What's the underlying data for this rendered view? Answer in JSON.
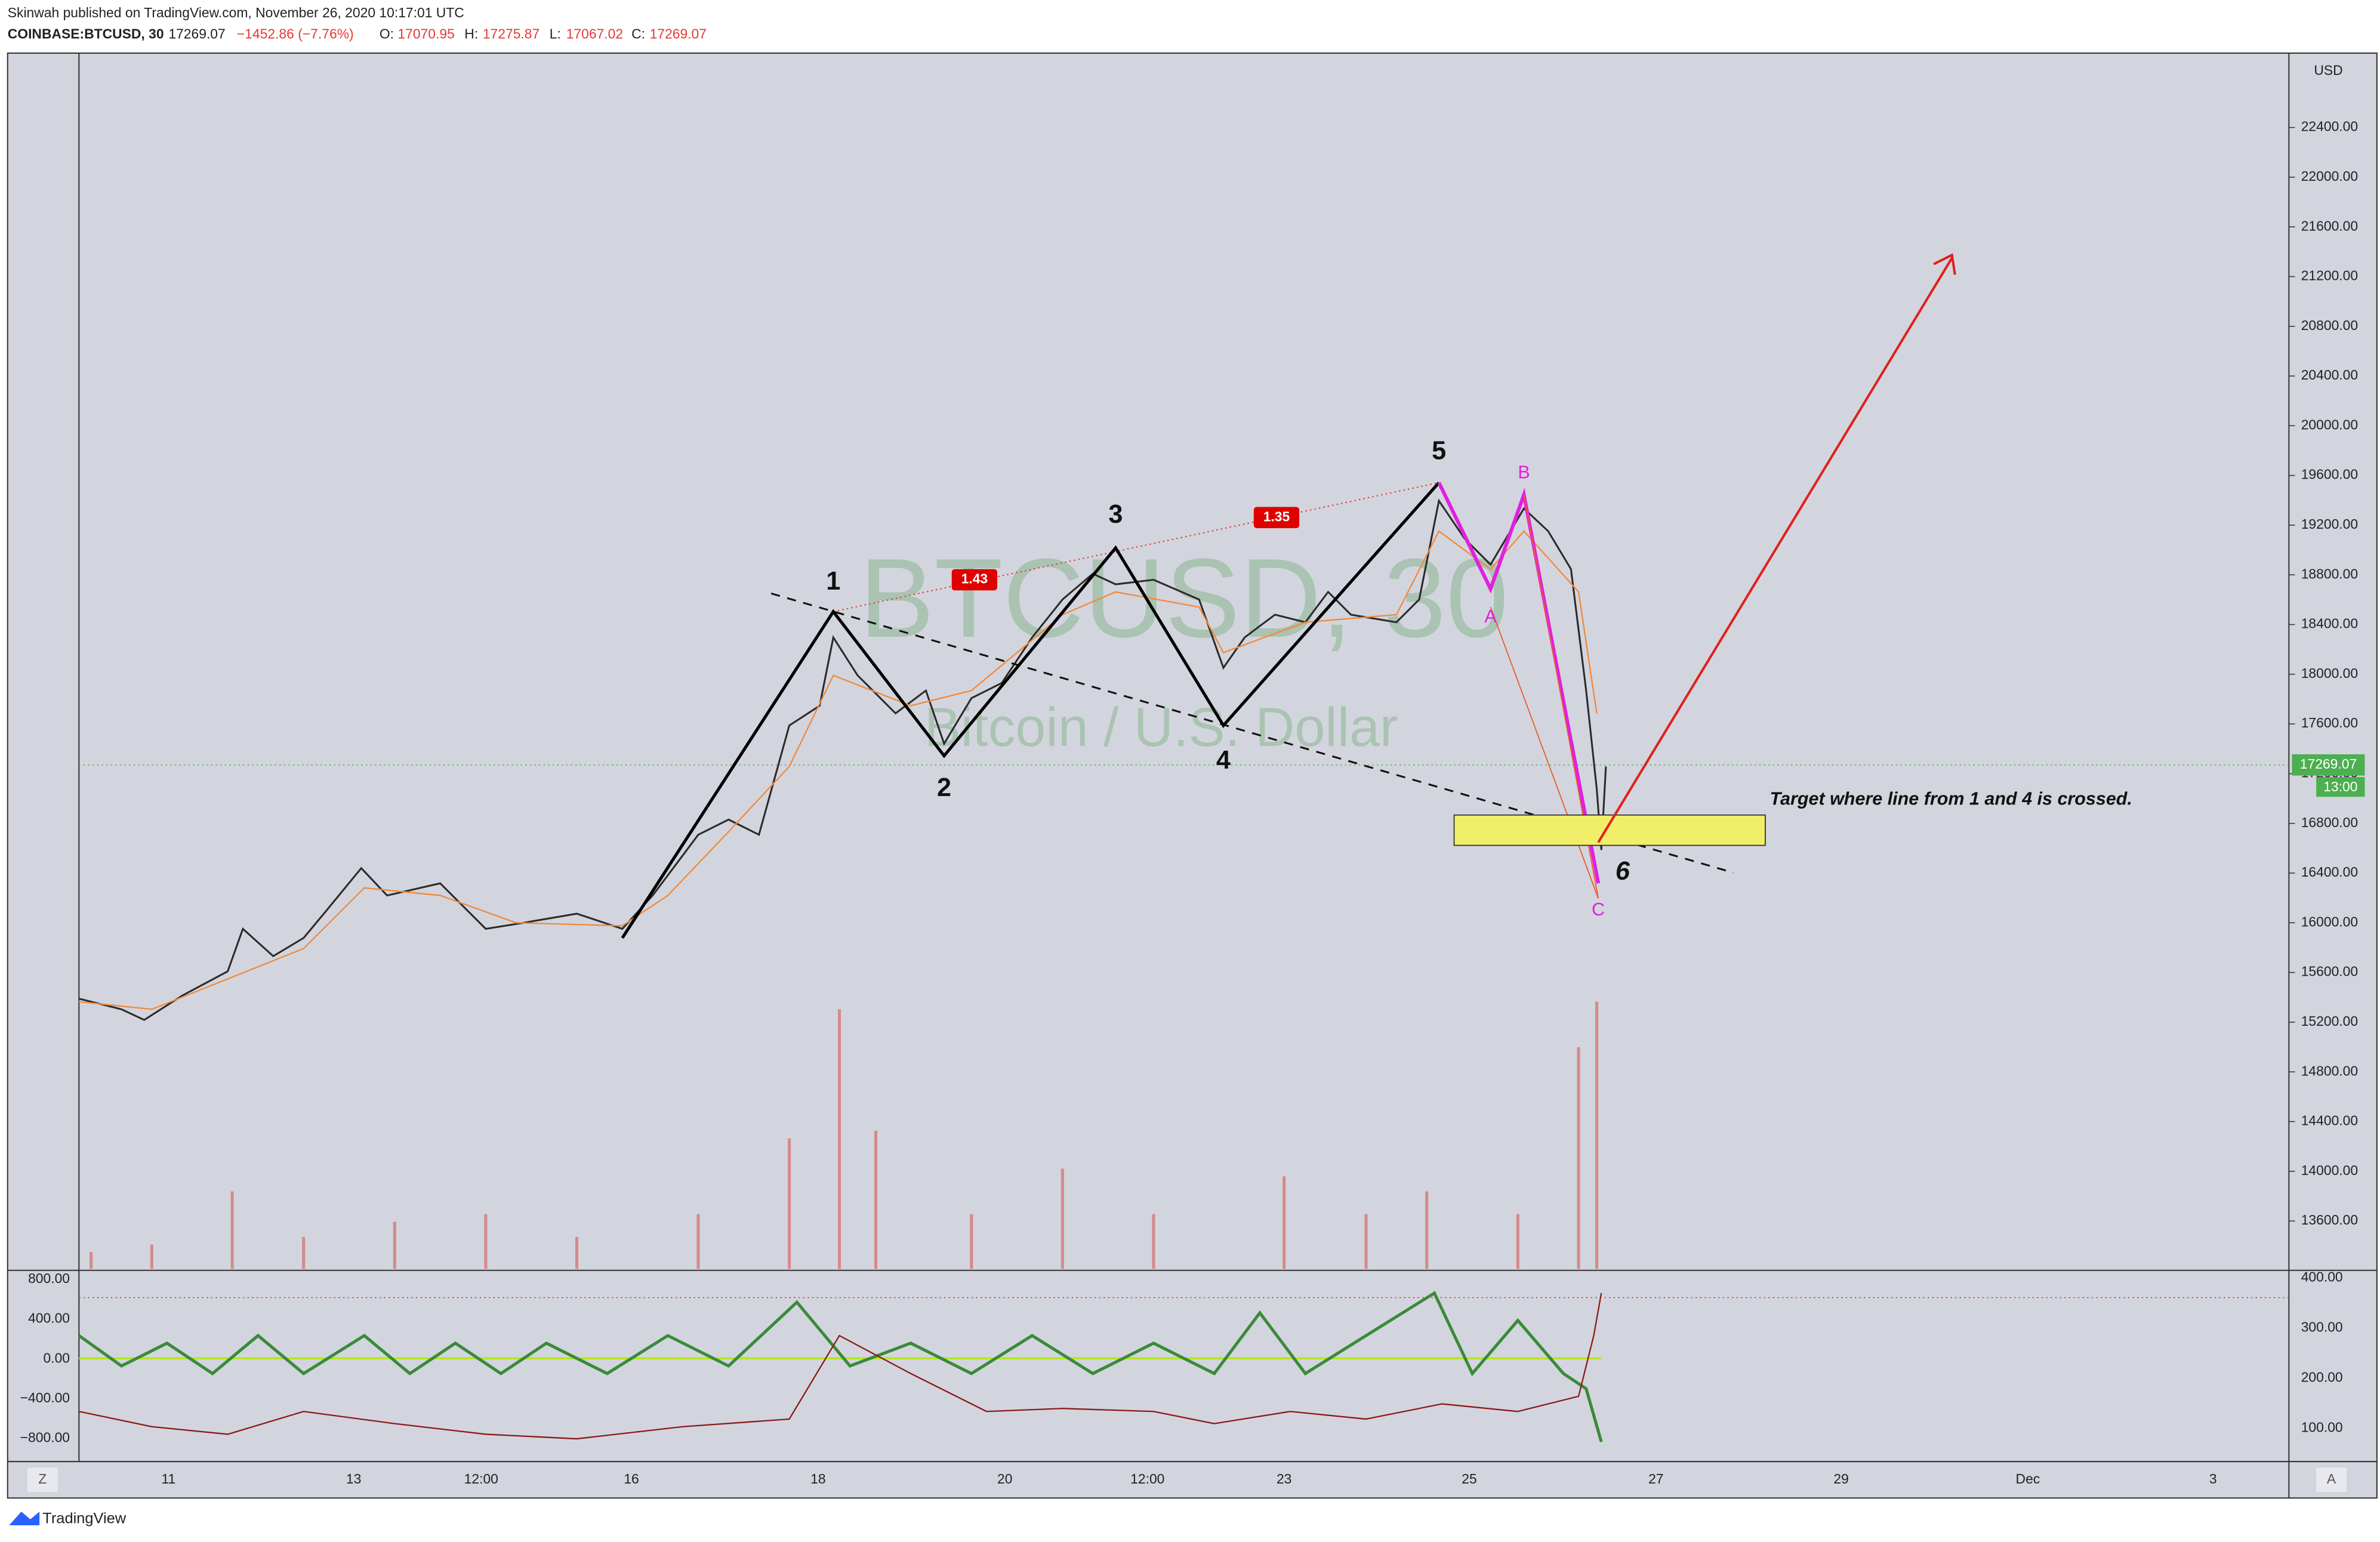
{
  "header": {
    "publisher": "Skinwah published on TradingView.com, November 26, 2020 10:17:01 UTC",
    "symbol": "COINBASE:BTCUSD, 30",
    "last": "17269.07",
    "change": "−1452.86 (−7.76%)",
    "o_label": "O:",
    "o": "17070.95",
    "h_label": "H:",
    "h": "17275.87",
    "l_label": "L:",
    "l": "17067.02",
    "c_label": "C:",
    "c": "17269.07"
  },
  "watermark": {
    "symbol": "BTCUSD, 30",
    "description": "Bitcoin / U.S. Dollar"
  },
  "price_axis": {
    "currency": "USD",
    "ticks": [
      "22400.00",
      "22000.00",
      "21600.00",
      "21200.00",
      "20800.00",
      "20400.00",
      "20000.00",
      "19600.00",
      "19200.00",
      "18800.00",
      "18400.00",
      "18000.00",
      "17600.00",
      "17200.00",
      "16800.00",
      "16400.00",
      "16000.00",
      "15600.00",
      "15200.00",
      "14800.00",
      "14400.00",
      "14000.00",
      "13600.00"
    ],
    "last_price": "17269.07",
    "countdown": "13:00"
  },
  "time_axis": {
    "ticks": [
      "11",
      "13",
      "12:00",
      "16",
      "18",
      "20",
      "12:00",
      "23",
      "25",
      "27",
      "29",
      "Dec",
      "3"
    ]
  },
  "oscillator_axis": {
    "left_ticks": [
      "800.00",
      "400.00",
      "0.00",
      "−400.00",
      "−800.00"
    ],
    "right_ticks": [
      "400.00",
      "300.00",
      "200.00",
      "100.00"
    ]
  },
  "annotations": {
    "waves": [
      "1",
      "2",
      "3",
      "4",
      "5",
      "6"
    ],
    "corrective": [
      "A",
      "B",
      "C"
    ],
    "ratios": [
      "1.43",
      "1.35"
    ],
    "target_note": "Target where line from 1 and 4 is crossed."
  },
  "buttons": {
    "left": "Z",
    "right": "A"
  },
  "footer": "TradingView"
}
